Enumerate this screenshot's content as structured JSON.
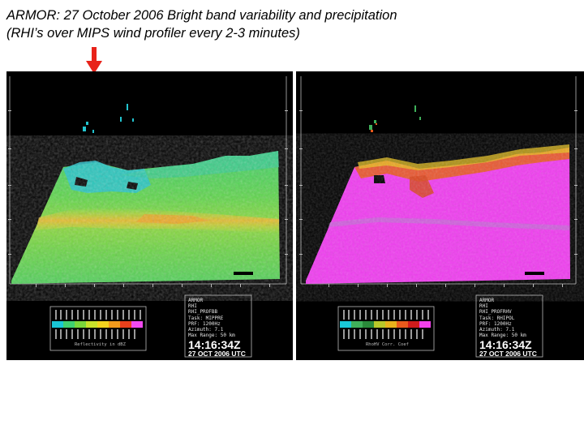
{
  "slide": {
    "title_line1": "ARMOR:  27 October 2006 Bright band variability and precipitation",
    "title_line2": "(RHI’s over MIPS wind profiler every 2-3 minutes)"
  },
  "colors": {
    "arrow": "#e8231a",
    "panel_background": "#000000",
    "reflectivity_palette": [
      "#19c6d6",
      "#3fd070",
      "#7ad63a",
      "#c8e02a",
      "#f2d21e",
      "#f29a1c",
      "#e8401c",
      "#f14af0"
    ],
    "rhohv_palette": [
      "#19c6d6",
      "#3fb05a",
      "#2a8a3a",
      "#b8c82a",
      "#e8b21c",
      "#e85a1c",
      "#d01c1c",
      "#f240ec"
    ]
  },
  "left_panel": {
    "info_lines": [
      "ARMOR",
      "RHI",
      "RHI_PROFBB",
      "Task: MIPPRE",
      "PRF: 1200Hz",
      "Azimuth: 7.1",
      "Max Range: 50 km"
    ],
    "time": "14:16:34Z",
    "date": "27 OCT 2006 UTC",
    "legend_label": "Reflectivity in dBZ"
  },
  "right_panel": {
    "info_lines": [
      "ARMOR",
      "RHI",
      "RHI_PROFRHV",
      "Task: RHIPOL",
      "PRF: 1200Hz",
      "Azimuth: 7.1",
      "Max Range: 50 km"
    ],
    "time": "14:16:34Z",
    "date": "27 OCT 2006 UTC",
    "legend_label": "RhoHV Corr. Coef"
  }
}
